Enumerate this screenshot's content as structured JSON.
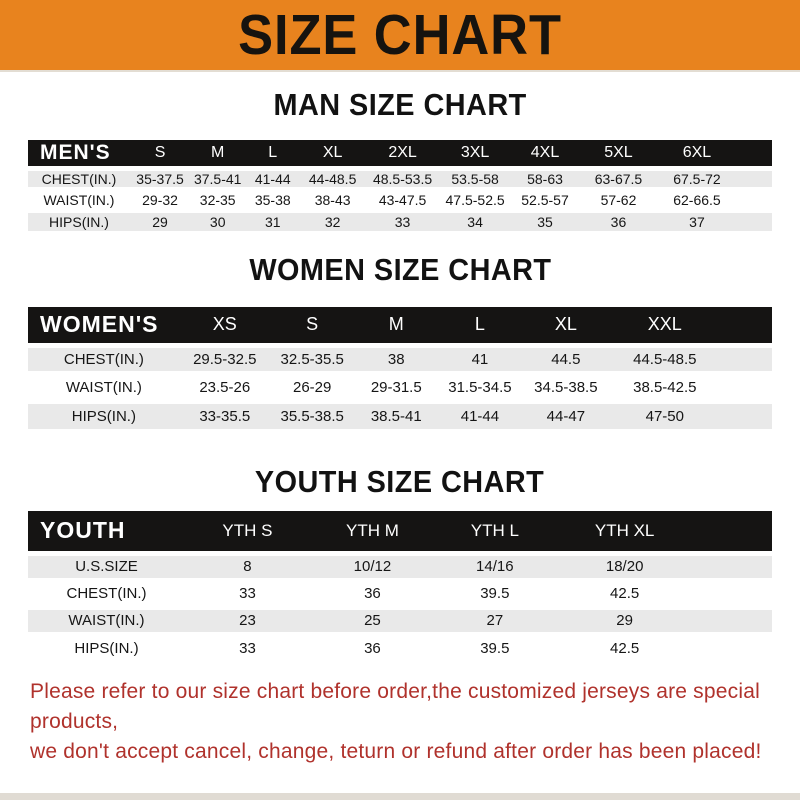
{
  "theme": {
    "accent_orange": "#E8831E",
    "band_black": "#151413",
    "stripe_gray": "#e9e9e9",
    "note_red": "#B0322C"
  },
  "banner": {
    "title": "SIZE CHART"
  },
  "sections": [
    {
      "id": "men",
      "heading": "MAN SIZE CHART",
      "table": {
        "corner_label": "MEN'S",
        "size_headers": [
          "S",
          "M",
          "L",
          "XL",
          "2XL",
          "3XL",
          "4XL",
          "5XL",
          "6XL"
        ],
        "rows": [
          {
            "label": "CHEST(IN.)",
            "values": [
              "35-37.5",
              "37.5-41",
              "41-44",
              "44-48.5",
              "48.5-53.5",
              "53.5-58",
              "58-63",
              "63-67.5",
              "67.5-72"
            ]
          },
          {
            "label": "WAIST(IN.)",
            "values": [
              "29-32",
              "32-35",
              "35-38",
              "38-43",
              "43-47.5",
              "47.5-52.5",
              "52.5-57",
              "57-62",
              "62-66.5"
            ]
          },
          {
            "label": "HIPS(IN.)",
            "values": [
              "29",
              "30",
              "31",
              "32",
              "33",
              "34",
              "35",
              "36",
              "37"
            ]
          }
        ]
      }
    },
    {
      "id": "women",
      "heading": "WOMEN SIZE CHART",
      "table": {
        "corner_label": "WOMEN'S",
        "size_headers": [
          "XS",
          "S",
          "M",
          "L",
          "XL",
          "XXL"
        ],
        "rows": [
          {
            "label": "CHEST(IN.)",
            "values": [
              "29.5-32.5",
              "32.5-35.5",
              "38",
              "41",
              "44.5",
              "44.5-48.5"
            ]
          },
          {
            "label": "WAIST(IN.)",
            "values": [
              "23.5-26",
              "26-29",
              "29-31.5",
              "31.5-34.5",
              "34.5-38.5",
              "38.5-42.5"
            ]
          },
          {
            "label": "HIPS(IN.)",
            "values": [
              "33-35.5",
              "35.5-38.5",
              "38.5-41",
              "41-44",
              "44-47",
              "47-50"
            ]
          }
        ]
      }
    },
    {
      "id": "youth",
      "heading": "YOUTH SIZE CHART",
      "table": {
        "corner_label": "YOUTH",
        "size_headers": [
          "YTH S",
          "YTH M",
          "YTH L",
          "YTH XL"
        ],
        "rows": [
          {
            "label": "U.S.SIZE",
            "values": [
              "8",
              "10/12",
              "14/16",
              "18/20"
            ]
          },
          {
            "label": "CHEST(IN.)",
            "values": [
              "33",
              "36",
              "39.5",
              "42.5"
            ]
          },
          {
            "label": "WAIST(IN.)",
            "values": [
              "23",
              "25",
              "27",
              "29"
            ]
          },
          {
            "label": "HIPS(IN.)",
            "values": [
              "33",
              "36",
              "39.5",
              "42.5"
            ]
          }
        ]
      }
    }
  ],
  "footer": {
    "line1": "Please refer to our size chart before order,the customized jerseys are special products,",
    "line2": "we don't accept cancel, change, teturn or refund after order has been placed!"
  }
}
